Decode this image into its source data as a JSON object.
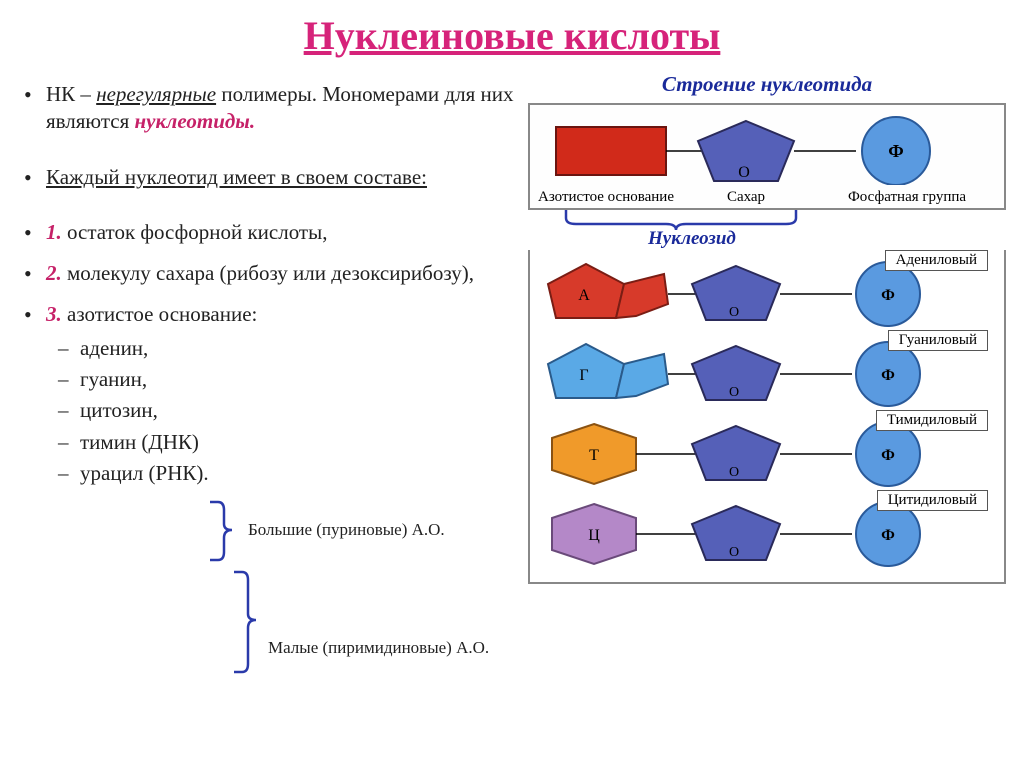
{
  "title": "Нуклеиновые кислоты",
  "colors": {
    "title": "#d6237a",
    "accent": "#c62168",
    "blue": "#1a2a9a",
    "text": "#222222"
  },
  "bullets": {
    "b1_pre": "НК – ",
    "b1_under": "нерегулярные",
    "b1_post": " полимеры. Мономерами для них являются ",
    "b1_em": "нуклеотиды.",
    "b2": "Каждый нуклеотид имеет в своем составе:",
    "n1_num": "1.",
    "n1_txt": " остаток фосфорной кислоты,",
    "n2_num": "2.",
    "n2_txt": " молекулу сахара (рибозу или дезоксирибозу),",
    "n3_num": "3.",
    "n3_txt": " азотистое основание:",
    "bases": [
      "аденин,",
      "гуанин,",
      "цитозин,",
      "тимин (ДНК)",
      "урацил (РНК)."
    ]
  },
  "annot1": "Большие (пуриновые) А.О.",
  "annot2": "Малые (пиримидиновые) А.О.",
  "rightTitle": "Строение нуклеотида",
  "nukleozid": "Нуклеозид",
  "diagLabels": {
    "base": "Азотистое основание",
    "sugar": "Сахар",
    "phos": "Фосфатная группа"
  },
  "structLetters": {
    "sugar": "О",
    "phos": "Ф"
  },
  "nucleotides": [
    {
      "name": "Адениловый",
      "letter": "А",
      "baseFill": "#d73a2a",
      "baseStroke": "#7a1d14",
      "shape": "bicyclic"
    },
    {
      "name": "Гуаниловый",
      "letter": "Г",
      "baseFill": "#5aa9e6",
      "baseStroke": "#2a5a8a",
      "shape": "bicyclic"
    },
    {
      "name": "Тимидиловый",
      "letter": "Т",
      "baseFill": "#f09a2a",
      "baseStroke": "#8a5212",
      "shape": "hex"
    },
    {
      "name": "Цитидиловый",
      "letter": "Ц",
      "baseFill": "#b488c8",
      "baseStroke": "#6a4a7a",
      "shape": "hex"
    }
  ],
  "shapes": {
    "sugarFill": "#5560b8",
    "sugarStroke": "#2a2a5a",
    "phosFill": "#5a9ae0",
    "phosStroke": "#2a5a9a",
    "rectFill": "#d12a1a",
    "rectStroke": "#6a1510"
  }
}
